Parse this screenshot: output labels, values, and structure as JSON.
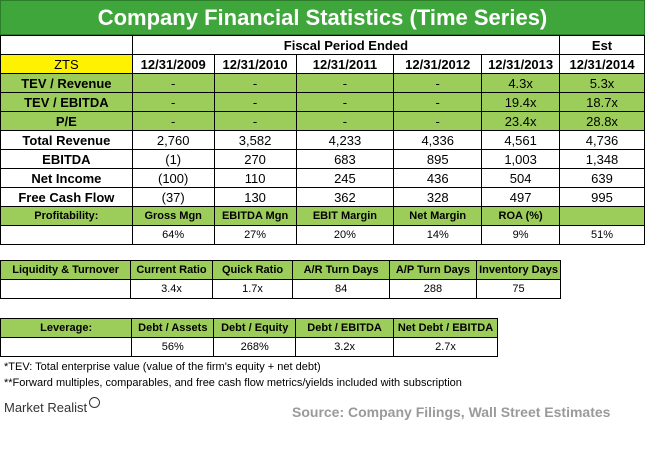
{
  "title": "Company Financial Statistics (Time Series)",
  "ticker": "ZTS",
  "fiscal_period_label": "Fiscal Period Ended",
  "est_label": "Est",
  "periods": [
    "12/31/2009",
    "12/31/2010",
    "12/31/2011",
    "12/31/2012",
    "12/31/2013",
    "12/31/2014"
  ],
  "multiples": [
    {
      "label": "TEV / Revenue",
      "values": [
        "-",
        "-",
        "-",
        "-",
        "4.3x",
        "5.3x"
      ]
    },
    {
      "label": "TEV / EBITDA",
      "values": [
        "-",
        "-",
        "-",
        "-",
        "19.4x",
        "18.7x"
      ]
    },
    {
      "label": "P/E",
      "values": [
        "-",
        "-",
        "-",
        "-",
        "23.4x",
        "28.8x"
      ]
    }
  ],
  "financials": [
    {
      "label": "Total Revenue",
      "values": [
        "2,760",
        "3,582",
        "4,233",
        "4,336",
        "4,561",
        "4,736"
      ]
    },
    {
      "label": "EBITDA",
      "values": [
        "(1)",
        "270",
        "683",
        "895",
        "1,003",
        "1,348"
      ]
    },
    {
      "label": "Net Income",
      "values": [
        "(100)",
        "110",
        "245",
        "436",
        "504",
        "639"
      ]
    },
    {
      "label": "Free Cash Flow",
      "values": [
        "(37)",
        "130",
        "362",
        "328",
        "497",
        "995"
      ]
    }
  ],
  "profitability": {
    "label": "Profitability:",
    "headers": [
      "Gross Mgn",
      "EBITDA Mgn",
      "EBIT Margin",
      "Net Margin",
      "ROA (%)",
      ""
    ],
    "values": [
      "64%",
      "27%",
      "20%",
      "14%",
      "9%",
      "51%"
    ]
  },
  "liquidity": {
    "label": "Liquidity & Turnover",
    "headers": [
      "Current Ratio",
      "Quick Ratio",
      "A/R Turn Days",
      "A/P Turn Days",
      "Inventory Days"
    ],
    "values": [
      "3.4x",
      "1.7x",
      "84",
      "288",
      "75"
    ]
  },
  "leverage": {
    "label": "Leverage:",
    "headers": [
      "Debt / Assets",
      "Debt / Equity",
      "Debt / EBITDA",
      "Net Debt / EBITDA"
    ],
    "values": [
      "56%",
      "268%",
      "3.2x",
      "2.7x"
    ]
  },
  "footnotes": [
    "*TEV: Total enterprise value (value of the firm's equity + net debt)",
    "**Forward multiples, comparables, and free cash flow metrics/yields included with subscription"
  ],
  "brand": "Market Realist",
  "source": "Source: Company Filings, Wall Street Estimates",
  "colors": {
    "title_bg": "#3ea63a",
    "cell_green": "#9ccd5a",
    "ticker_yellow": "#fff200"
  }
}
